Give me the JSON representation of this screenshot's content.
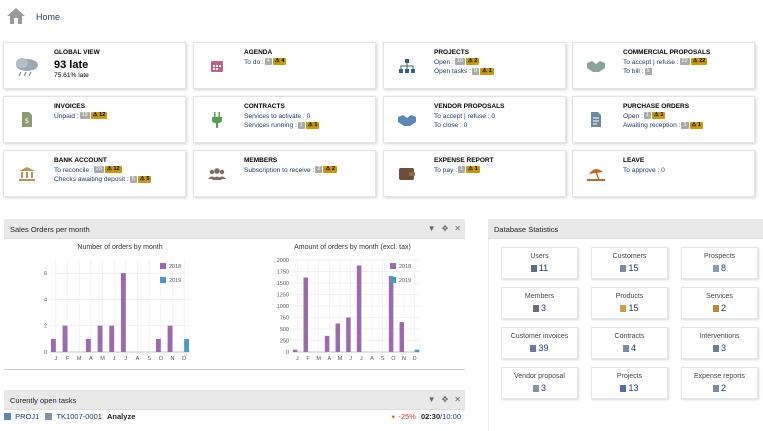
{
  "nav": {
    "home_label": "Home"
  },
  "boxes": {
    "global": {
      "title": "GLOBAL VIEW",
      "big": "93 late",
      "sub": "75.61% late"
    },
    "agenda": {
      "title": "AGENDA",
      "l1": "To do :",
      "b1": "4",
      "w1": "4"
    },
    "projects": {
      "title": "PROJECTS",
      "l1": "Open :",
      "b1": "10",
      "w1": "2",
      "l2": "Open tasks :",
      "b2": "9",
      "w2": "1"
    },
    "commercial": {
      "title": "COMMERCIAL PROPOSALS",
      "l1": "To accept | refuse :",
      "b1": "22",
      "w1": "22",
      "l2": "To bill :",
      "b2": "5"
    },
    "invoices": {
      "title": "INVOICES",
      "l1": "Unpaid :",
      "b1": "13",
      "w1": "12"
    },
    "contracts": {
      "title": "CONTRACTS",
      "l1": "Services to activate : 0",
      "l2": "Services running :",
      "b2": "1",
      "w2": "1"
    },
    "vendor": {
      "title": "VENDOR PROPOSALS",
      "l1": "To accept | refuse : 0",
      "l2": "To close : 0"
    },
    "purchase": {
      "title": "PURCHASE ORDERS",
      "l1": "Open :",
      "b1": "1",
      "w1": "1",
      "l2": "Awaiting reception :",
      "b2": "1",
      "w2": "1"
    },
    "bank": {
      "title": "BANK ACCOUNT",
      "l1": "To reconcile :",
      "b1": "23",
      "w1": "12",
      "l2": "Checks awaiting deposit :",
      "b2": "5",
      "w2": "5"
    },
    "members": {
      "title": "MEMBERS",
      "l1": "Subscription to receive :",
      "b1": "2",
      "w1": "2"
    },
    "expense": {
      "title": "EXPENSE REPORT",
      "l1": "To pay :",
      "b1": "1",
      "w1": "1"
    },
    "leave": {
      "title": "LEAVE",
      "l1": "To approve : 0"
    }
  },
  "sales_panel": {
    "title": "Sales Orders per month"
  },
  "stats_panel": {
    "title": "Database Statistics"
  },
  "tasks_panel": {
    "title": "Curently open tasks"
  },
  "chart_data": [
    {
      "type": "bar",
      "title": "Number of orders by month",
      "categories": [
        "J",
        "F",
        "M",
        "A",
        "M",
        "J",
        "J",
        "A",
        "S",
        "O",
        "N",
        "D"
      ],
      "series": [
        {
          "name": "2018",
          "values": [
            1,
            2,
            0,
            1,
            2,
            2,
            6,
            0,
            0,
            1,
            2,
            0
          ]
        },
        {
          "name": "2019",
          "values": [
            0,
            0,
            0,
            0,
            0,
            0,
            0,
            0,
            0,
            0,
            0,
            1
          ]
        }
      ],
      "ylim": [
        0,
        7
      ],
      "yticks": [
        "0",
        "2",
        "4",
        "6"
      ],
      "colors": [
        "#9b6bb0",
        "#4b99c2"
      ]
    },
    {
      "type": "bar",
      "title": "Amount of orders by month (excl. tax)",
      "categories": [
        "J",
        "F",
        "M",
        "A",
        "M",
        "J",
        "J",
        "A",
        "S",
        "O",
        "N",
        "D"
      ],
      "series": [
        {
          "name": "2018",
          "values": [
            50,
            1620,
            0,
            350,
            620,
            750,
            1880,
            0,
            0,
            1650,
            650,
            0
          ]
        },
        {
          "name": "2019",
          "values": [
            0,
            0,
            0,
            0,
            0,
            0,
            0,
            0,
            0,
            0,
            0,
            50
          ]
        }
      ],
      "ylim": [
        0,
        2000
      ],
      "yticks": [
        "0",
        "250",
        "500",
        "750",
        "1000",
        "1250",
        "1500",
        "1750",
        "2000"
      ],
      "colors": [
        "#9b6bb0",
        "#4b99c2"
      ]
    }
  ],
  "stats": [
    {
      "label": "Users",
      "value": "11"
    },
    {
      "label": "Customers",
      "value": "15"
    },
    {
      "label": "Prospects",
      "value": "8"
    },
    {
      "label": "Members",
      "value": "3"
    },
    {
      "label": "Products",
      "value": "15"
    },
    {
      "label": "Services",
      "value": "2"
    },
    {
      "label": "Customer invoices",
      "value": "39"
    },
    {
      "label": "Contracts",
      "value": "4"
    },
    {
      "label": "Interventions",
      "value": "3"
    },
    {
      "label": "Vendor proposal",
      "value": "3"
    },
    {
      "label": "Projects",
      "value": "13"
    },
    {
      "label": "Expense reports",
      "value": "2"
    }
  ],
  "task": {
    "project": "PROJ1",
    "ref": "TK1007-0001",
    "name": "Analyze",
    "progress": "-25%",
    "time": "02:30",
    "planned": "/10:00"
  }
}
